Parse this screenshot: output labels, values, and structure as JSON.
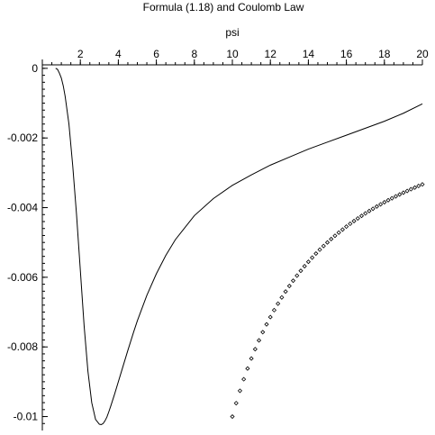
{
  "chart_data": {
    "type": "line",
    "title": "Formula (1.18) and Coulomb Law",
    "xlabel": "psi",
    "ylabel": "",
    "xlim": [
      0,
      20
    ],
    "ylim": [
      -0.0104,
      0.0001
    ],
    "x_ticks": [
      {
        "value": 2,
        "label": "2"
      },
      {
        "value": 4,
        "label": "4"
      },
      {
        "value": 6,
        "label": "6"
      },
      {
        "value": 8,
        "label": "8"
      },
      {
        "value": 10,
        "label": "10"
      },
      {
        "value": 12,
        "label": "12"
      },
      {
        "value": 14,
        "label": "14"
      },
      {
        "value": 16,
        "label": "16"
      },
      {
        "value": 18,
        "label": "18"
      },
      {
        "value": 20,
        "label": "20"
      }
    ],
    "y_ticks": [
      {
        "value": 0,
        "label": "0"
      },
      {
        "value": -0.002,
        "label": "-0.002"
      },
      {
        "value": -0.004,
        "label": "-0.004"
      },
      {
        "value": -0.006,
        "label": "-0.006"
      },
      {
        "value": -0.008,
        "label": "-0.008"
      },
      {
        "value": -0.01,
        "label": "-0.01"
      }
    ],
    "series": [
      {
        "style": "line",
        "x": [
          0.7,
          0.8,
          0.9,
          1.0,
          1.1,
          1.2,
          1.4,
          1.6,
          1.8,
          2.0,
          2.2,
          2.4,
          2.6,
          2.8,
          3.0,
          3.1,
          3.2,
          3.3,
          3.4,
          3.5,
          3.6,
          3.8,
          4.0,
          4.2,
          4.5,
          4.8,
          5.0,
          5.5,
          6.0,
          6.5,
          7.0,
          8.0,
          9.0,
          10.0,
          11.0,
          12.0,
          13.0,
          14.0,
          15.0,
          16.0,
          17.0,
          18.0,
          19.0,
          20.0
        ],
        "y": [
          0.0,
          -3e-05,
          -0.00014,
          -0.00028,
          -0.0005,
          -0.0008,
          -0.0016,
          -0.0028,
          -0.0042,
          -0.0058,
          -0.0074,
          -0.0087,
          -0.0096,
          -0.01008,
          -0.01022,
          -0.01023,
          -0.0102,
          -0.01012,
          -0.01001,
          -0.00986,
          -0.0097,
          -0.00936,
          -0.009,
          -0.00864,
          -0.0081,
          -0.00758,
          -0.00725,
          -0.00652,
          -0.0059,
          -0.00537,
          -0.00492,
          -0.00423,
          -0.00374,
          -0.00336,
          -0.00306,
          -0.00278,
          -0.00255,
          -0.00232,
          -0.00212,
          -0.00192,
          -0.00172,
          -0.00152,
          -0.00129,
          -0.00102
        ]
      },
      {
        "style": "points",
        "x": [
          10.0,
          10.2,
          10.4,
          10.6,
          10.8,
          11.0,
          11.2,
          11.4,
          11.6,
          11.8,
          12.0,
          12.2,
          12.4,
          12.6,
          12.8,
          13.0,
          13.2,
          13.4,
          13.6,
          13.8,
          14.0,
          14.2,
          14.4,
          14.6,
          14.8,
          15.0,
          15.2,
          15.4,
          15.6,
          15.8,
          16.0,
          16.2,
          16.4,
          16.6,
          16.8,
          17.0,
          17.2,
          17.4,
          17.6,
          17.8,
          18.0,
          18.2,
          18.4,
          18.6,
          18.8,
          19.0,
          19.2,
          19.4,
          19.6,
          19.8,
          20.0
        ],
        "y": [
          -0.01,
          -0.009615,
          -0.009259,
          -0.008929,
          -0.008621,
          -0.008333,
          -0.008065,
          -0.007813,
          -0.007576,
          -0.007353,
          -0.007143,
          -0.006944,
          -0.006757,
          -0.006579,
          -0.00641,
          -0.00625,
          -0.006098,
          -0.005952,
          -0.005814,
          -0.005682,
          -0.005556,
          -0.005435,
          -0.005319,
          -0.005208,
          -0.005102,
          -0.005,
          -0.004902,
          -0.004808,
          -0.004717,
          -0.00463,
          -0.004545,
          -0.004464,
          -0.004386,
          -0.00431,
          -0.004237,
          -0.004167,
          -0.004098,
          -0.004032,
          -0.003968,
          -0.003906,
          -0.003846,
          -0.003788,
          -0.003731,
          -0.003676,
          -0.003623,
          -0.003571,
          -0.003521,
          -0.003472,
          -0.003425,
          -0.003378,
          -0.003333
        ]
      }
    ]
  }
}
